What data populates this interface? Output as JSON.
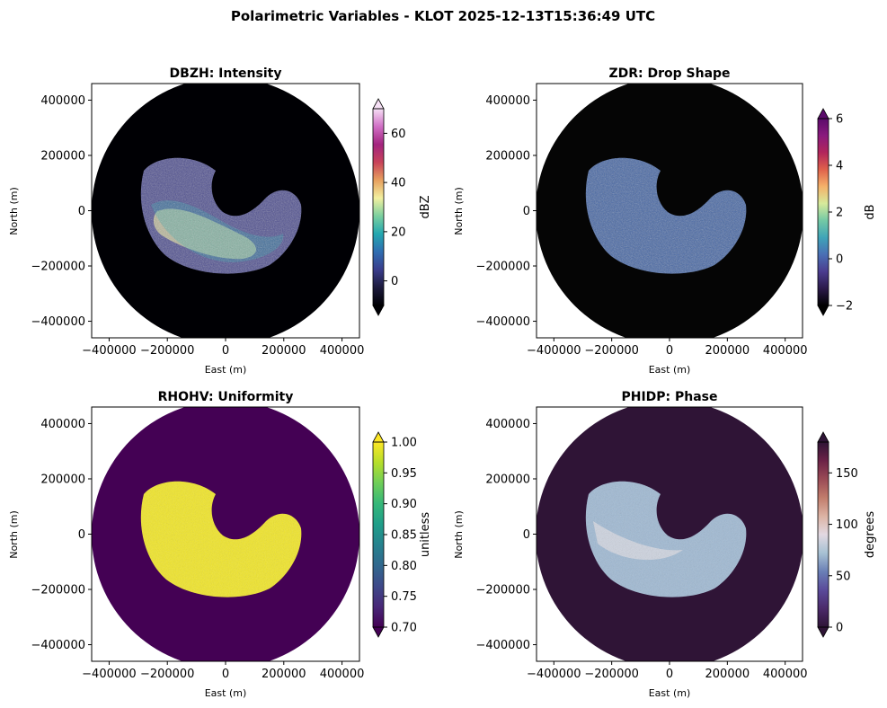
{
  "figure": {
    "title": "Polarimetric Variables - KLOT 2025-12-13T15:36:49 UTC"
  },
  "chart_data": [
    {
      "type": "heatmap",
      "variable": "DBZH",
      "title": "DBZH: Intensity",
      "xlabel": "East (m)",
      "ylabel": "North (m)",
      "xlim": [
        -460000,
        460000
      ],
      "ylim": [
        -460000,
        460000
      ],
      "xticks": [
        "−400000",
        "−200000",
        "0",
        "200000",
        "400000"
      ],
      "yticks": [
        "400000",
        "200000",
        "0",
        "−200000",
        "−400000"
      ],
      "xtick_values": [
        -400000,
        -200000,
        0,
        200000,
        400000
      ],
      "ytick_values": [
        400000,
        200000,
        0,
        -200000,
        -400000
      ],
      "range_radius_m": 460000,
      "echo_extent_m": {
        "west": -300000,
        "east": 280000,
        "north": 200000,
        "south": -230000
      },
      "colorbar": {
        "label": "dBZ",
        "min": -10,
        "max": 70,
        "ticks": [
          0,
          20,
          40,
          60
        ],
        "tick_labels": [
          "0",
          "20",
          "40",
          "60"
        ],
        "extend": "both",
        "colors": [
          "#000004",
          "#1c1a3c",
          "#3a3d8c",
          "#2f6db1",
          "#23a7b0",
          "#7bcf9f",
          "#f2f0a0",
          "#e7a05f",
          "#c8435a",
          "#a3247f",
          "#d06fc5",
          "#f6e0f5"
        ]
      },
      "background_color": "#000004"
    },
    {
      "type": "heatmap",
      "variable": "ZDR",
      "title": "ZDR: Drop Shape",
      "xlabel": "East (m)",
      "ylabel": "North (m)",
      "xlim": [
        -460000,
        460000
      ],
      "ylim": [
        -460000,
        460000
      ],
      "xticks": [
        "−400000",
        "−200000",
        "0",
        "200000",
        "400000"
      ],
      "yticks": [
        "400000",
        "200000",
        "0",
        "−200000",
        "−400000"
      ],
      "xtick_values": [
        -400000,
        -200000,
        0,
        200000,
        400000
      ],
      "ytick_values": [
        400000,
        200000,
        0,
        -200000,
        -400000
      ],
      "range_radius_m": 460000,
      "echo_extent_m": {
        "west": -300000,
        "east": 280000,
        "north": 200000,
        "south": -230000
      },
      "colorbar": {
        "label": "dB",
        "min": -2,
        "max": 6,
        "ticks": [
          -2,
          0,
          2,
          4,
          6
        ],
        "tick_labels": [
          "−2",
          "0",
          "2",
          "4",
          "6"
        ],
        "extend": "both",
        "colors": [
          "#000000",
          "#2b1a4a",
          "#4b3d8f",
          "#4a6fb5",
          "#3fa4b8",
          "#74c9a5",
          "#d7ea9b",
          "#f4b26a",
          "#e0614b",
          "#b2265b",
          "#8a1a7d",
          "#5b0b6b"
        ]
      },
      "background_color": "#050505"
    },
    {
      "type": "heatmap",
      "variable": "RHOHV",
      "title": "RHOHV: Uniformity",
      "xlabel": "East (m)",
      "ylabel": "North (m)",
      "xlim": [
        -460000,
        460000
      ],
      "ylim": [
        -460000,
        460000
      ],
      "xticks": [
        "−400000",
        "−200000",
        "0",
        "200000",
        "400000"
      ],
      "yticks": [
        "400000",
        "200000",
        "0",
        "−200000",
        "−400000"
      ],
      "xtick_values": [
        -400000,
        -200000,
        0,
        200000,
        400000
      ],
      "ytick_values": [
        400000,
        200000,
        0,
        -200000,
        -400000
      ],
      "range_radius_m": 460000,
      "echo_extent_m": {
        "west": -300000,
        "east": 280000,
        "north": 200000,
        "south": -230000
      },
      "colorbar": {
        "label": "unitless",
        "min": 0.7,
        "max": 1.0,
        "ticks": [
          0.7,
          0.75,
          0.8,
          0.85,
          0.9,
          0.95,
          1.0
        ],
        "tick_labels": [
          "0.70",
          "0.75",
          "0.80",
          "0.85",
          "0.90",
          "0.95",
          "1.00"
        ],
        "extend": "both",
        "colors": [
          "#440154",
          "#482878",
          "#3e4989",
          "#31688e",
          "#26828e",
          "#1f9e89",
          "#35b779",
          "#6ece58",
          "#b5de2b",
          "#fde725"
        ]
      },
      "background_color": "#440154"
    },
    {
      "type": "heatmap",
      "variable": "PHIDP",
      "title": "PHIDP: Phase",
      "xlabel": "East (m)",
      "ylabel": "North (m)",
      "xlim": [
        -460000,
        460000
      ],
      "ylim": [
        -460000,
        460000
      ],
      "xticks": [
        "−400000",
        "−200000",
        "0",
        "200000",
        "400000"
      ],
      "yticks": [
        "400000",
        "200000",
        "0",
        "−200000",
        "−400000"
      ],
      "xtick_values": [
        -400000,
        -200000,
        0,
        200000,
        400000
      ],
      "ytick_values": [
        400000,
        200000,
        0,
        -200000,
        -400000
      ],
      "range_radius_m": 460000,
      "echo_extent_m": {
        "west": -300000,
        "east": 280000,
        "north": 200000,
        "south": -230000
      },
      "colorbar": {
        "label": "degrees",
        "min": 0,
        "max": 180,
        "ticks": [
          0,
          50,
          100,
          150
        ],
        "tick_labels": [
          "0",
          "50",
          "100",
          "150"
        ],
        "extend": "both",
        "colors": [
          "#2f1436",
          "#4b2a6a",
          "#5a4a9a",
          "#6a7fb6",
          "#a7c1d3",
          "#e2d9e2",
          "#dcb3a4",
          "#c17c6b",
          "#9a4a55",
          "#6b2247",
          "#2f1436"
        ]
      },
      "background_color": "#2f1436"
    }
  ]
}
